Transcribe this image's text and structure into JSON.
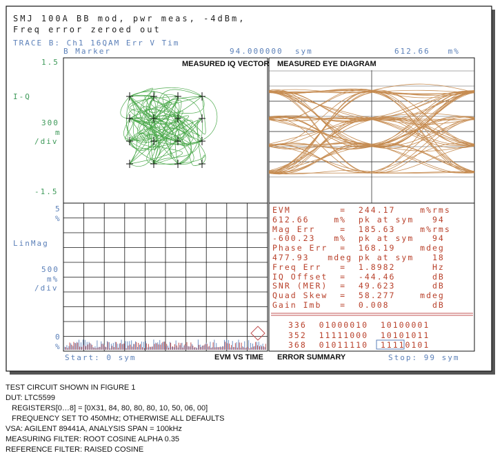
{
  "header": {
    "line1": "SMJ 100A BB mod, pwr meas, -4dBm,",
    "line2": "Freq error zeroed out",
    "trace": "TRACE B: Ch1 16QAM Err V Tim",
    "marker_label": "B Marker",
    "marker_value": "94.000000  sym",
    "marker_reading": "612.66   m%"
  },
  "iq_axis": {
    "top": "1.5",
    "label": "I-Q",
    "scale_value": "300",
    "scale_unit": "m",
    "scale_div": "/div",
    "bottom": "-1.5"
  },
  "mag_axis": {
    "top": "5",
    "top_unit": "%",
    "label": "LinMag",
    "scale_value": "500",
    "scale_unit": "m%",
    "scale_div": "/div",
    "bottom": "0",
    "bottom_unit": "%"
  },
  "panels": {
    "iq_title": "MEASURED IQ VECTOR",
    "eye_title": "MEASURED EYE DIAGRAM",
    "evm_title": "EVM VS TIME",
    "error_title": "ERROR SUMMARY"
  },
  "footer": {
    "start": "Start: 0 sym",
    "stop": "Stop: 99 sym"
  },
  "error_summary": [
    "EVM        =  244.17    m%rms",
    "612.66    m%  pk at sym   94",
    "Mag Err    =  185.63    m%rms",
    "-600.23   m%  pk at sym   94",
    "Phase Err  =  168.19    mdeg",
    "477.93   mdeg pk at sym   18",
    "Freq Err   =  1.8982      Hz",
    "IQ Offset  =  -44.46      dB",
    "SNR (MER)  =  49.623      dB",
    "Quad Skew  =  58.277    mdeg",
    "Gain Imb   =  0.008       dB"
  ],
  "bits": [
    "336  01000010  10100001",
    "352  11111000  10101011",
    "368  01011110  11110101"
  ],
  "caption": [
    "TEST CIRCUIT SHOWN IN FIGURE 1",
    "DUT: LTC5599",
    "   REGISTERS[0…8] = [0X31, 84, 80, 80, 80, 10, 50, 06, 00]",
    "   FREQUENCY SET TO 450MHz; OTHERWISE ALL DEFAULTS",
    "VSA: AGILENT 89441A, ANALYSIS SPAN = 100kHz",
    "MEASURING FILTER: ROOT COSINE ALPHA 0.35",
    "REFERENCE FILTER: RAISED COSINE"
  ],
  "colors": {
    "iq_trace": "#4aa84a",
    "eye_trace": "#c08040",
    "error_text": "#b8402a",
    "axis_text": "#5a7fb8",
    "evm_bars_blue": "#6d8fc4",
    "evm_bars_red": "#c05050"
  }
}
